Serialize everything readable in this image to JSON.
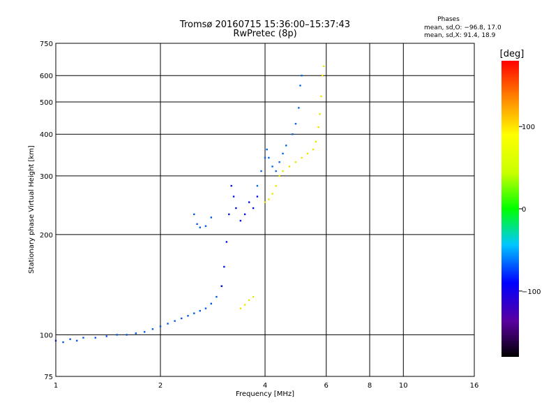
{
  "chart_data": {
    "type": "scatter",
    "title": "Tromsø 20160715 15:36:00–15:37:43",
    "subtitle": "RwPretec (8p)",
    "xlabel": "Frequency [MHz]",
    "ylabel": "Stationary phase Virtual Height [km]",
    "x_scale": "log",
    "y_scale": "log",
    "xlim": [
      1,
      16
    ],
    "ylim": [
      75,
      750
    ],
    "x_ticks": [
      1,
      2,
      4,
      6,
      8,
      10,
      16
    ],
    "x_tick_labels": [
      "1",
      "2",
      "4",
      "6",
      "8",
      "10",
      "16"
    ],
    "y_ticks": [
      75,
      100,
      200,
      300,
      400,
      500,
      600,
      750
    ],
    "y_tick_labels": [
      "75",
      "100",
      "200",
      "300",
      "400",
      "500",
      "600",
      "750"
    ],
    "grid": true,
    "colorbar": {
      "label": "[deg]",
      "range": [
        -180,
        180
      ],
      "tick_values": [
        100,
        0,
        -100
      ],
      "tick_labels": [
        "100",
        "0",
        "−100"
      ]
    },
    "stats": {
      "heading": "Phases",
      "line_o": "mean, sd,O: −96.8, 17.0",
      "line_x": "mean, sd,X:  91.4, 18.9"
    },
    "traces": [
      {
        "phase": -110,
        "points": [
          [
            1.0,
            96
          ],
          [
            1.05,
            95
          ],
          [
            1.1,
            97
          ],
          [
            1.15,
            96
          ],
          [
            1.2,
            98
          ],
          [
            1.3,
            98
          ],
          [
            1.4,
            99
          ],
          [
            1.5,
            100
          ],
          [
            1.6,
            100
          ],
          [
            1.7,
            101
          ],
          [
            1.8,
            102
          ],
          [
            1.9,
            104
          ],
          [
            2.0,
            106
          ],
          [
            2.1,
            108
          ],
          [
            2.2,
            110
          ],
          [
            2.3,
            112
          ],
          [
            2.4,
            114
          ],
          [
            2.5,
            116
          ],
          [
            2.6,
            118
          ],
          [
            2.7,
            120
          ],
          [
            2.8,
            124
          ],
          [
            2.9,
            130
          ],
          [
            3.0,
            140
          ]
        ]
      },
      {
        "phase": -135,
        "points": [
          [
            3.0,
            140
          ],
          [
            3.05,
            160
          ],
          [
            3.1,
            190
          ],
          [
            3.15,
            230
          ],
          [
            3.2,
            280
          ],
          [
            3.25,
            260
          ],
          [
            3.3,
            240
          ],
          [
            3.4,
            220
          ],
          [
            3.5,
            230
          ],
          [
            3.6,
            250
          ],
          [
            3.7,
            240
          ],
          [
            3.8,
            260
          ]
        ]
      },
      {
        "phase": -110,
        "points": [
          [
            2.5,
            230
          ],
          [
            2.55,
            215
          ],
          [
            2.6,
            210
          ],
          [
            2.7,
            212
          ],
          [
            2.8,
            225
          ]
        ]
      },
      {
        "phase": -105,
        "points": [
          [
            3.8,
            280
          ],
          [
            3.9,
            310
          ],
          [
            4.0,
            340
          ],
          [
            4.05,
            360
          ],
          [
            4.1,
            340
          ],
          [
            4.2,
            320
          ],
          [
            4.3,
            310
          ],
          [
            4.4,
            330
          ],
          [
            4.5,
            350
          ],
          [
            4.6,
            370
          ],
          [
            4.8,
            400
          ],
          [
            4.9,
            430
          ],
          [
            5.0,
            480
          ],
          [
            5.05,
            560
          ],
          [
            5.1,
            600
          ]
        ]
      },
      {
        "phase": 100,
        "points": [
          [
            4.0,
            250
          ],
          [
            4.1,
            255
          ],
          [
            4.2,
            265
          ],
          [
            4.3,
            280
          ],
          [
            4.4,
            300
          ],
          [
            4.5,
            310
          ],
          [
            4.7,
            320
          ],
          [
            4.9,
            330
          ],
          [
            5.1,
            340
          ],
          [
            5.3,
            350
          ],
          [
            5.5,
            360
          ],
          [
            5.6,
            380
          ],
          [
            5.7,
            420
          ],
          [
            5.75,
            460
          ],
          [
            5.8,
            520
          ],
          [
            5.85,
            600
          ],
          [
            5.9,
            640
          ]
        ]
      },
      {
        "phase": 100,
        "points": [
          [
            3.4,
            120
          ],
          [
            3.5,
            123
          ],
          [
            3.6,
            127
          ],
          [
            3.7,
            130
          ]
        ]
      }
    ]
  }
}
